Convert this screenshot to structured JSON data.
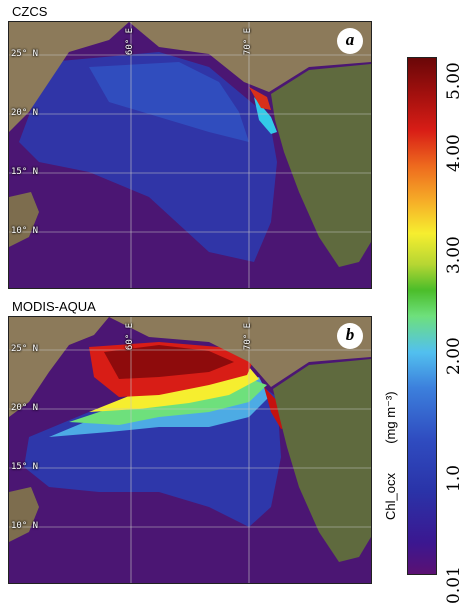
{
  "panels": [
    {
      "title": "CZCS",
      "badge": "a",
      "lat_labels": [
        "25° N",
        "20° N",
        "15° N",
        "10° N"
      ],
      "lon_labels": [
        "60° E",
        "70° E"
      ]
    },
    {
      "title": "MODIS-AQUA",
      "badge": "b",
      "lat_labels": [
        "25° N",
        "20° N",
        "15° N",
        "10° N"
      ],
      "lon_labels": [
        "60° E",
        "70° E"
      ]
    }
  ],
  "colorbar": {
    "ticks": [
      "0.01",
      "1.0",
      "2.00",
      "3.00",
      "4.00",
      "5.00"
    ],
    "label": "Chl_ocx",
    "unit_label": "(mg m⁻³)",
    "colors": [
      "#5b1173",
      "#2a33a8",
      "#52c0ef",
      "#6ee07c",
      "#f6ee2f",
      "#ee6b1e",
      "#a2100e"
    ]
  },
  "colors": {
    "ocean_low": "#4b1673",
    "land": "#8c7a5a",
    "land_dark": "#5f6a3e",
    "grid": "#c8c8c8"
  }
}
